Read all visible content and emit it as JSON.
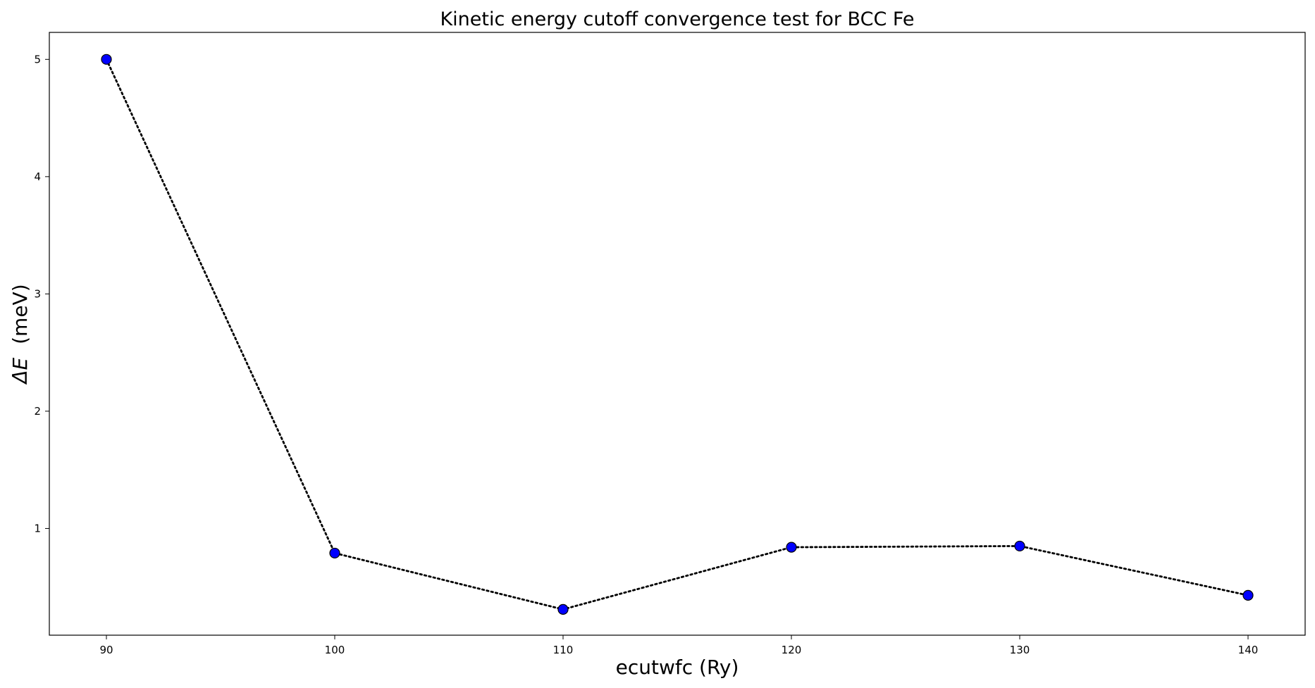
{
  "chart_data": {
    "type": "line",
    "title": "Kinetic energy cutoff convergence test for BCC Fe",
    "xlabel": "ecutwfc (Ry)",
    "ylabel_symbol": "ΔE",
    "ylabel_unit": "(meV)",
    "x": [
      90,
      100,
      110,
      120,
      130,
      140
    ],
    "y": [
      5.0,
      0.79,
      0.31,
      0.84,
      0.85,
      0.43
    ],
    "xlim": [
      87.5,
      142.5
    ],
    "ylim": [
      0.09,
      5.23
    ],
    "xticks": [
      90,
      100,
      110,
      120,
      130,
      140
    ],
    "yticks": [
      1,
      2,
      3,
      4,
      5
    ],
    "grid": false,
    "legend": "none",
    "line_style": "dotted",
    "line_color": "#000000",
    "marker": "circle",
    "marker_color": "#0000ff",
    "marker_edge_color": "#000000"
  }
}
